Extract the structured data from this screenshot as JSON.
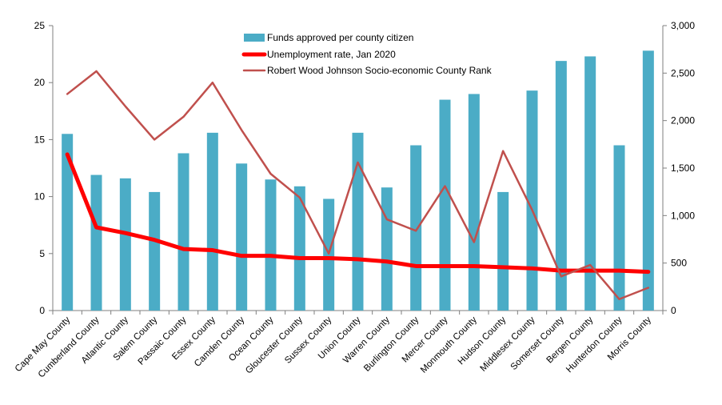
{
  "chart_data": {
    "type": "bar",
    "categories": [
      "Cape May County",
      "Cumberland County",
      "Atlantic County",
      "Salem County",
      "Passaic County",
      "Essex County",
      "Camden County",
      "Ocean County",
      "Gloucester County",
      "Sussex County",
      "Union County",
      "Warren County",
      "Burlington County",
      "Mercer County",
      "Monmouth  County",
      "Hudson County",
      "Middlesex County",
      "Somerset County",
      "Bergen County",
      "Hunterdon County",
      "Morris County"
    ],
    "left_axis": {
      "ylim": [
        0,
        25
      ],
      "ticks": [
        0,
        5,
        10,
        15,
        20,
        25
      ],
      "tick_labels": [
        "0",
        "5",
        "10",
        "15",
        "20",
        "25"
      ]
    },
    "right_axis": {
      "ylim": [
        0,
        3000
      ],
      "ticks": [
        0,
        500,
        1000,
        1500,
        2000,
        2500,
        3000
      ],
      "tick_labels": [
        "0",
        "500",
        "1,000",
        "1,500",
        "2,000",
        "2,500",
        "3,000"
      ]
    },
    "series": [
      {
        "name": "Funds approved per county citizen",
        "type": "bar",
        "axis": "left",
        "color": "#4BACC6",
        "values": [
          15.5,
          11.9,
          11.6,
          10.4,
          13.8,
          15.6,
          12.9,
          11.5,
          10.9,
          9.8,
          15.6,
          10.8,
          14.5,
          18.5,
          19.0,
          10.4,
          19.3,
          21.9,
          22.3,
          14.5,
          22.8
        ]
      },
      {
        "name": "Unemployment rate, Jan 2020",
        "type": "line",
        "axis": "left",
        "color": "#FF0000",
        "values": [
          13.7,
          7.3,
          6.8,
          6.2,
          5.4,
          5.3,
          4.8,
          4.8,
          4.6,
          4.6,
          4.5,
          4.3,
          3.9,
          3.9,
          3.9,
          3.8,
          3.7,
          3.5,
          3.5,
          3.5,
          3.4
        ]
      },
      {
        "name": "Robert Wood Johnson Socio-economic County Rank",
        "type": "line",
        "axis": "right",
        "color": "#C0504D",
        "values": [
          2280,
          2520,
          2150,
          1800,
          2040,
          2400,
          1900,
          1440,
          1190,
          600,
          1560,
          960,
          840,
          1310,
          720,
          1680,
          1060,
          360,
          480,
          120,
          240
        ]
      }
    ],
    "legend_position": "top-center",
    "grid": false,
    "title": ""
  }
}
